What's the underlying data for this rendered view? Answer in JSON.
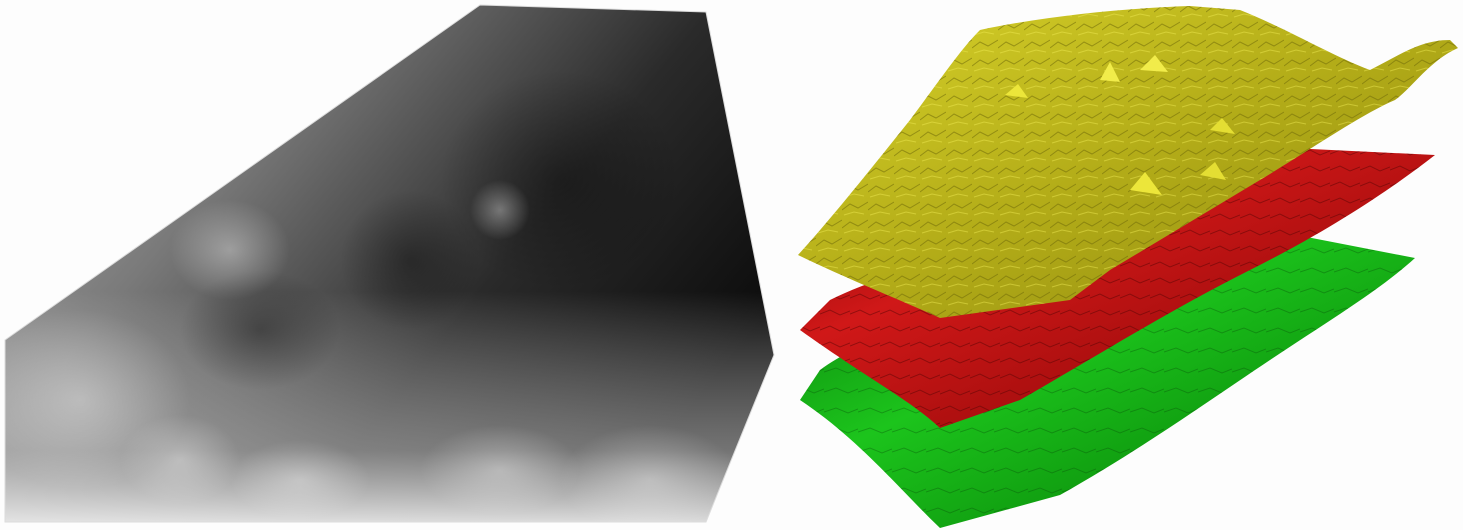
{
  "figure": {
    "left_panel": {
      "subject": "grayscale-elevation-map",
      "colors": {
        "dark": "#0e0e0e",
        "mid": "#6a6a6a",
        "light": "#f2f2f2"
      }
    },
    "right_panel": {
      "subject": "stacked-3d-surfaces",
      "layers": [
        {
          "color": "#c9c21c",
          "highlight": "#ece63a",
          "shadow": "#8a8410"
        },
        {
          "color": "#b40f0f",
          "highlight": "#e02222",
          "shadow": "#6e0505"
        },
        {
          "color": "#12b412",
          "highlight": "#2ed62e",
          "shadow": "#0a6e0a"
        }
      ]
    }
  }
}
